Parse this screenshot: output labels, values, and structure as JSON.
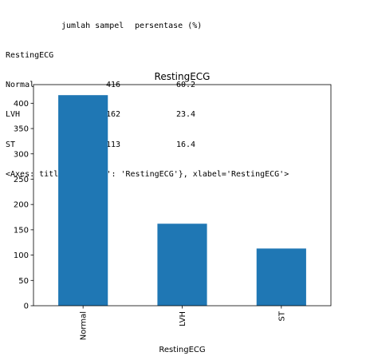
{
  "output": {
    "header": [
      "jumlah sampel",
      "persentase (%)"
    ],
    "index_name": "RestingECG",
    "rows": [
      {
        "label": "Normal",
        "count": "416",
        "pct": "60.2"
      },
      {
        "label": "LVH",
        "count": "162",
        "pct": "23.4"
      },
      {
        "label": "ST",
        "count": "113",
        "pct": "16.4"
      }
    ],
    "repr": "<Axes: title={'center': 'RestingECG'}, xlabel='RestingECG'>"
  },
  "chart_data": {
    "type": "bar",
    "title": "RestingECG",
    "xlabel": "RestingECG",
    "ylabel": "",
    "categories": [
      "Normal",
      "LVH",
      "ST"
    ],
    "values": [
      416,
      162,
      113
    ],
    "ylim": [
      0,
      436.8
    ],
    "yticks": [
      0,
      50,
      100,
      150,
      200,
      250,
      300,
      350,
      400
    ],
    "bar_color": "#1f77b4",
    "grid": false,
    "legend": "none"
  }
}
